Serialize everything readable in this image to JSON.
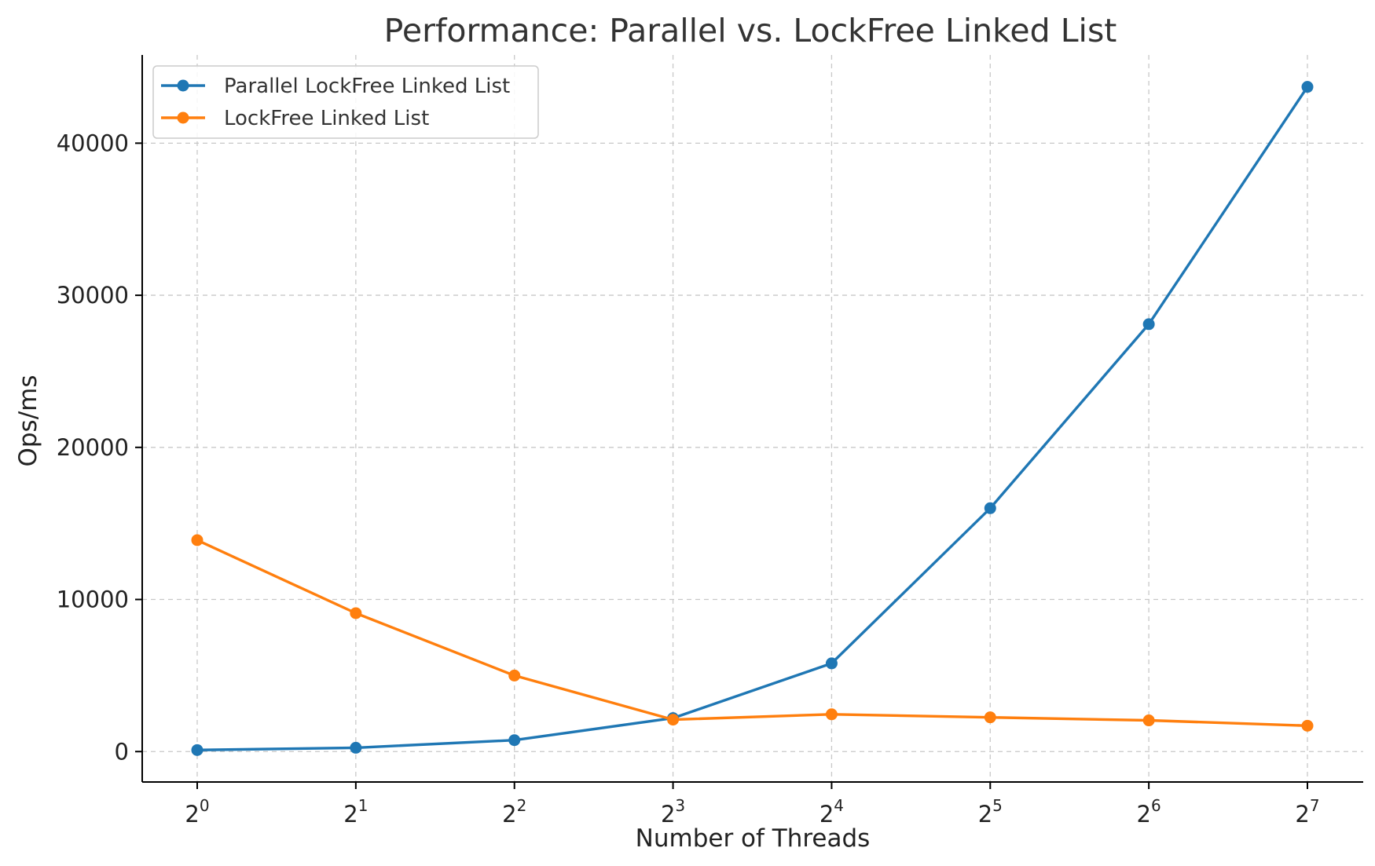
{
  "chart_data": {
    "type": "line",
    "title": "Performance: Parallel vs. LockFree Linked List",
    "xlabel": "Number of Threads",
    "ylabel": "Ops/ms",
    "x_scale": "log2",
    "x": [
      1,
      2,
      4,
      8,
      16,
      32,
      64,
      128
    ],
    "x_tick_labels": [
      {
        "base": "2",
        "exp": "0"
      },
      {
        "base": "2",
        "exp": "1"
      },
      {
        "base": "2",
        "exp": "2"
      },
      {
        "base": "2",
        "exp": "3"
      },
      {
        "base": "2",
        "exp": "4"
      },
      {
        "base": "2",
        "exp": "5"
      },
      {
        "base": "2",
        "exp": "6"
      },
      {
        "base": "2",
        "exp": "7"
      }
    ],
    "y_ticks": [
      0,
      10000,
      20000,
      30000,
      40000
    ],
    "y_tick_labels": [
      "0",
      "10000",
      "20000",
      "30000",
      "40000"
    ],
    "ylim": [
      -2000,
      45800
    ],
    "grid": true,
    "legend_position": "top-left",
    "series": [
      {
        "name": "Parallel LockFree Linked List",
        "color": "#1f77b4",
        "values": [
          100,
          250,
          750,
          2200,
          5800,
          16000,
          28100,
          43700
        ]
      },
      {
        "name": "LockFree Linked List",
        "color": "#ff7f0e",
        "values": [
          13900,
          9100,
          5000,
          2100,
          2450,
          2250,
          2050,
          1700
        ]
      }
    ]
  }
}
